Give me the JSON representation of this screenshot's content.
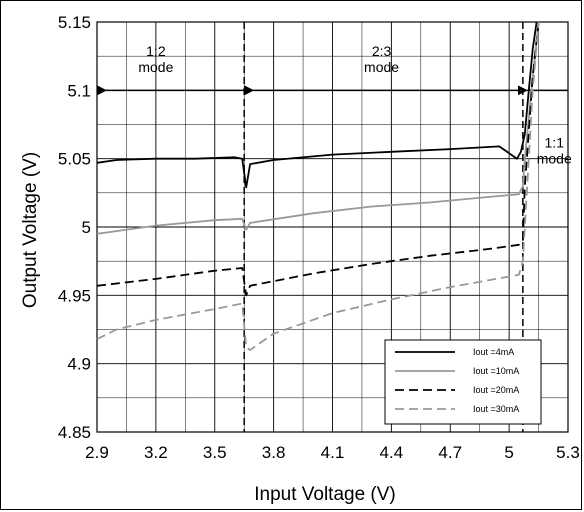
{
  "chart_data": {
    "type": "line",
    "title": "",
    "xlabel": "Input Voltage (V)",
    "ylabel": "Output Voltage (V)",
    "xlim": [
      2.9,
      5.3
    ],
    "ylim": [
      4.85,
      5.15
    ],
    "x_ticks": [
      "2.9",
      "3.2",
      "3.5",
      "3.8",
      "4.1",
      "4.4",
      "4.7",
      "5",
      "5.3"
    ],
    "y_ticks": [
      "5.15",
      "5.1",
      "5.05",
      "5",
      "4.95",
      "4.9",
      "4.85"
    ],
    "grid": true,
    "legend_position": "bottom-right",
    "mode_boundaries": [
      3.65,
      5.07
    ],
    "annotations": [
      {
        "lines": [
          "1:2",
          "mode"
        ],
        "x": 3.2,
        "y": 5.125
      },
      {
        "lines": [
          "2:3",
          "mode"
        ],
        "x": 4.35,
        "y": 5.125
      },
      {
        "lines": [
          "1:1",
          "mode"
        ],
        "x": 5.23,
        "y": 5.058
      }
    ],
    "series": [
      {
        "name": "Iout =4mA",
        "color": "#000000",
        "dash": "",
        "x": [
          2.9,
          3.0,
          3.2,
          3.4,
          3.6,
          3.64,
          3.66,
          3.68,
          3.8,
          4.1,
          4.4,
          4.7,
          4.95,
          5.04,
          5.06,
          5.08,
          5.1,
          5.12,
          5.14
        ],
        "y": [
          5.047,
          5.049,
          5.05,
          5.05,
          5.051,
          5.05,
          5.029,
          5.046,
          5.049,
          5.053,
          5.055,
          5.057,
          5.059,
          5.05,
          5.055,
          5.068,
          5.1,
          5.13,
          5.15
        ]
      },
      {
        "name": "Iout =10mA",
        "color": "#999999",
        "dash": "",
        "x": [
          2.9,
          3.2,
          3.5,
          3.64,
          3.66,
          3.68,
          4.0,
          4.3,
          4.6,
          4.9,
          5.05,
          5.07,
          5.08,
          5.1,
          5.12,
          5.15
        ],
        "y": [
          4.995,
          5.001,
          5.005,
          5.006,
          4.998,
          5.003,
          5.01,
          5.015,
          5.018,
          5.022,
          5.024,
          5.03,
          5.05,
          5.08,
          5.11,
          5.15
        ]
      },
      {
        "name": "Iout =20mA",
        "color": "#000000",
        "dash": "9,5",
        "x": [
          2.9,
          3.2,
          3.5,
          3.64,
          3.66,
          3.68,
          4.0,
          4.3,
          4.6,
          4.9,
          5.05,
          5.07,
          5.08,
          5.1,
          5.12,
          5.15
        ],
        "y": [
          4.957,
          4.962,
          4.968,
          4.97,
          4.95,
          4.957,
          4.966,
          4.973,
          4.979,
          4.984,
          4.987,
          4.99,
          5.03,
          5.07,
          5.11,
          5.15
        ]
      },
      {
        "name": "Iout =30mA",
        "color": "#999999",
        "dash": "9,5",
        "x": [
          2.9,
          3.0,
          3.2,
          3.5,
          3.64,
          3.66,
          3.68,
          3.8,
          4.1,
          4.4,
          4.7,
          5.05,
          5.07,
          5.08,
          5.1,
          5.12,
          5.15
        ],
        "y": [
          4.918,
          4.925,
          4.932,
          4.94,
          4.944,
          4.912,
          4.91,
          4.922,
          4.937,
          4.947,
          4.956,
          4.965,
          4.975,
          5.0,
          5.05,
          5.1,
          5.15
        ]
      }
    ]
  }
}
